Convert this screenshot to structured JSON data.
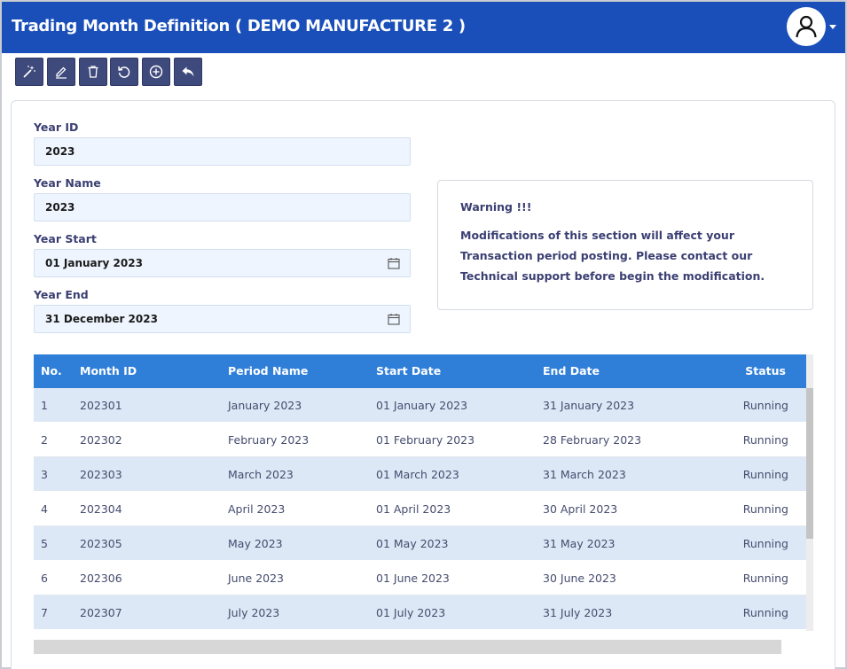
{
  "header": {
    "title": "Trading Month Definition ( DEMO MANUFACTURE 2 )"
  },
  "toolbar": {
    "buttons": [
      {
        "icon": "magic-wand-icon"
      },
      {
        "icon": "pencil-icon"
      },
      {
        "icon": "trash-icon"
      },
      {
        "icon": "refresh-icon"
      },
      {
        "icon": "plus-circle-icon"
      },
      {
        "icon": "reply-icon"
      }
    ]
  },
  "form": {
    "year_id": {
      "label": "Year ID",
      "value": "2023"
    },
    "year_name": {
      "label": "Year Name",
      "value": "2023"
    },
    "year_start": {
      "label": "Year Start",
      "value": "01 January 2023"
    },
    "year_end": {
      "label": "Year End",
      "value": "31 December 2023"
    }
  },
  "warning": {
    "title": "Warning !!!",
    "text": "Modifications of this section will affect your Transaction period posting. Please contact our Technical support before begin the modification."
  },
  "table": {
    "headers": {
      "no": "No.",
      "month_id": "Month ID",
      "period_name": "Period Name",
      "start_date": "Start Date",
      "end_date": "End Date",
      "status": "Status"
    },
    "rows": [
      {
        "no": "1",
        "month_id": "202301",
        "period_name": "January 2023",
        "start_date": "01 January 2023",
        "end_date": "31 January 2023",
        "status": "Running"
      },
      {
        "no": "2",
        "month_id": "202302",
        "period_name": "February 2023",
        "start_date": "01 February 2023",
        "end_date": "28 February 2023",
        "status": "Running"
      },
      {
        "no": "3",
        "month_id": "202303",
        "period_name": "March 2023",
        "start_date": "01 March 2023",
        "end_date": "31 March 2023",
        "status": "Running"
      },
      {
        "no": "4",
        "month_id": "202304",
        "period_name": "April 2023",
        "start_date": "01 April 2023",
        "end_date": "30 April 2023",
        "status": "Running"
      },
      {
        "no": "5",
        "month_id": "202305",
        "period_name": "May 2023",
        "start_date": "01 May 2023",
        "end_date": "31 May 2023",
        "status": "Running"
      },
      {
        "no": "6",
        "month_id": "202306",
        "period_name": "June 2023",
        "start_date": "01 June 2023",
        "end_date": "30 June 2023",
        "status": "Running"
      },
      {
        "no": "7",
        "month_id": "202307",
        "period_name": "July 2023",
        "start_date": "01 July 2023",
        "end_date": "31 July 2023",
        "status": "Running"
      }
    ]
  },
  "colors": {
    "header_bg": "#1a4fba",
    "toolbar_btn": "#3f4a7c",
    "table_header": "#2f7fd9",
    "row_alt": "#dde8f6",
    "label_text": "#3b3f72"
  }
}
